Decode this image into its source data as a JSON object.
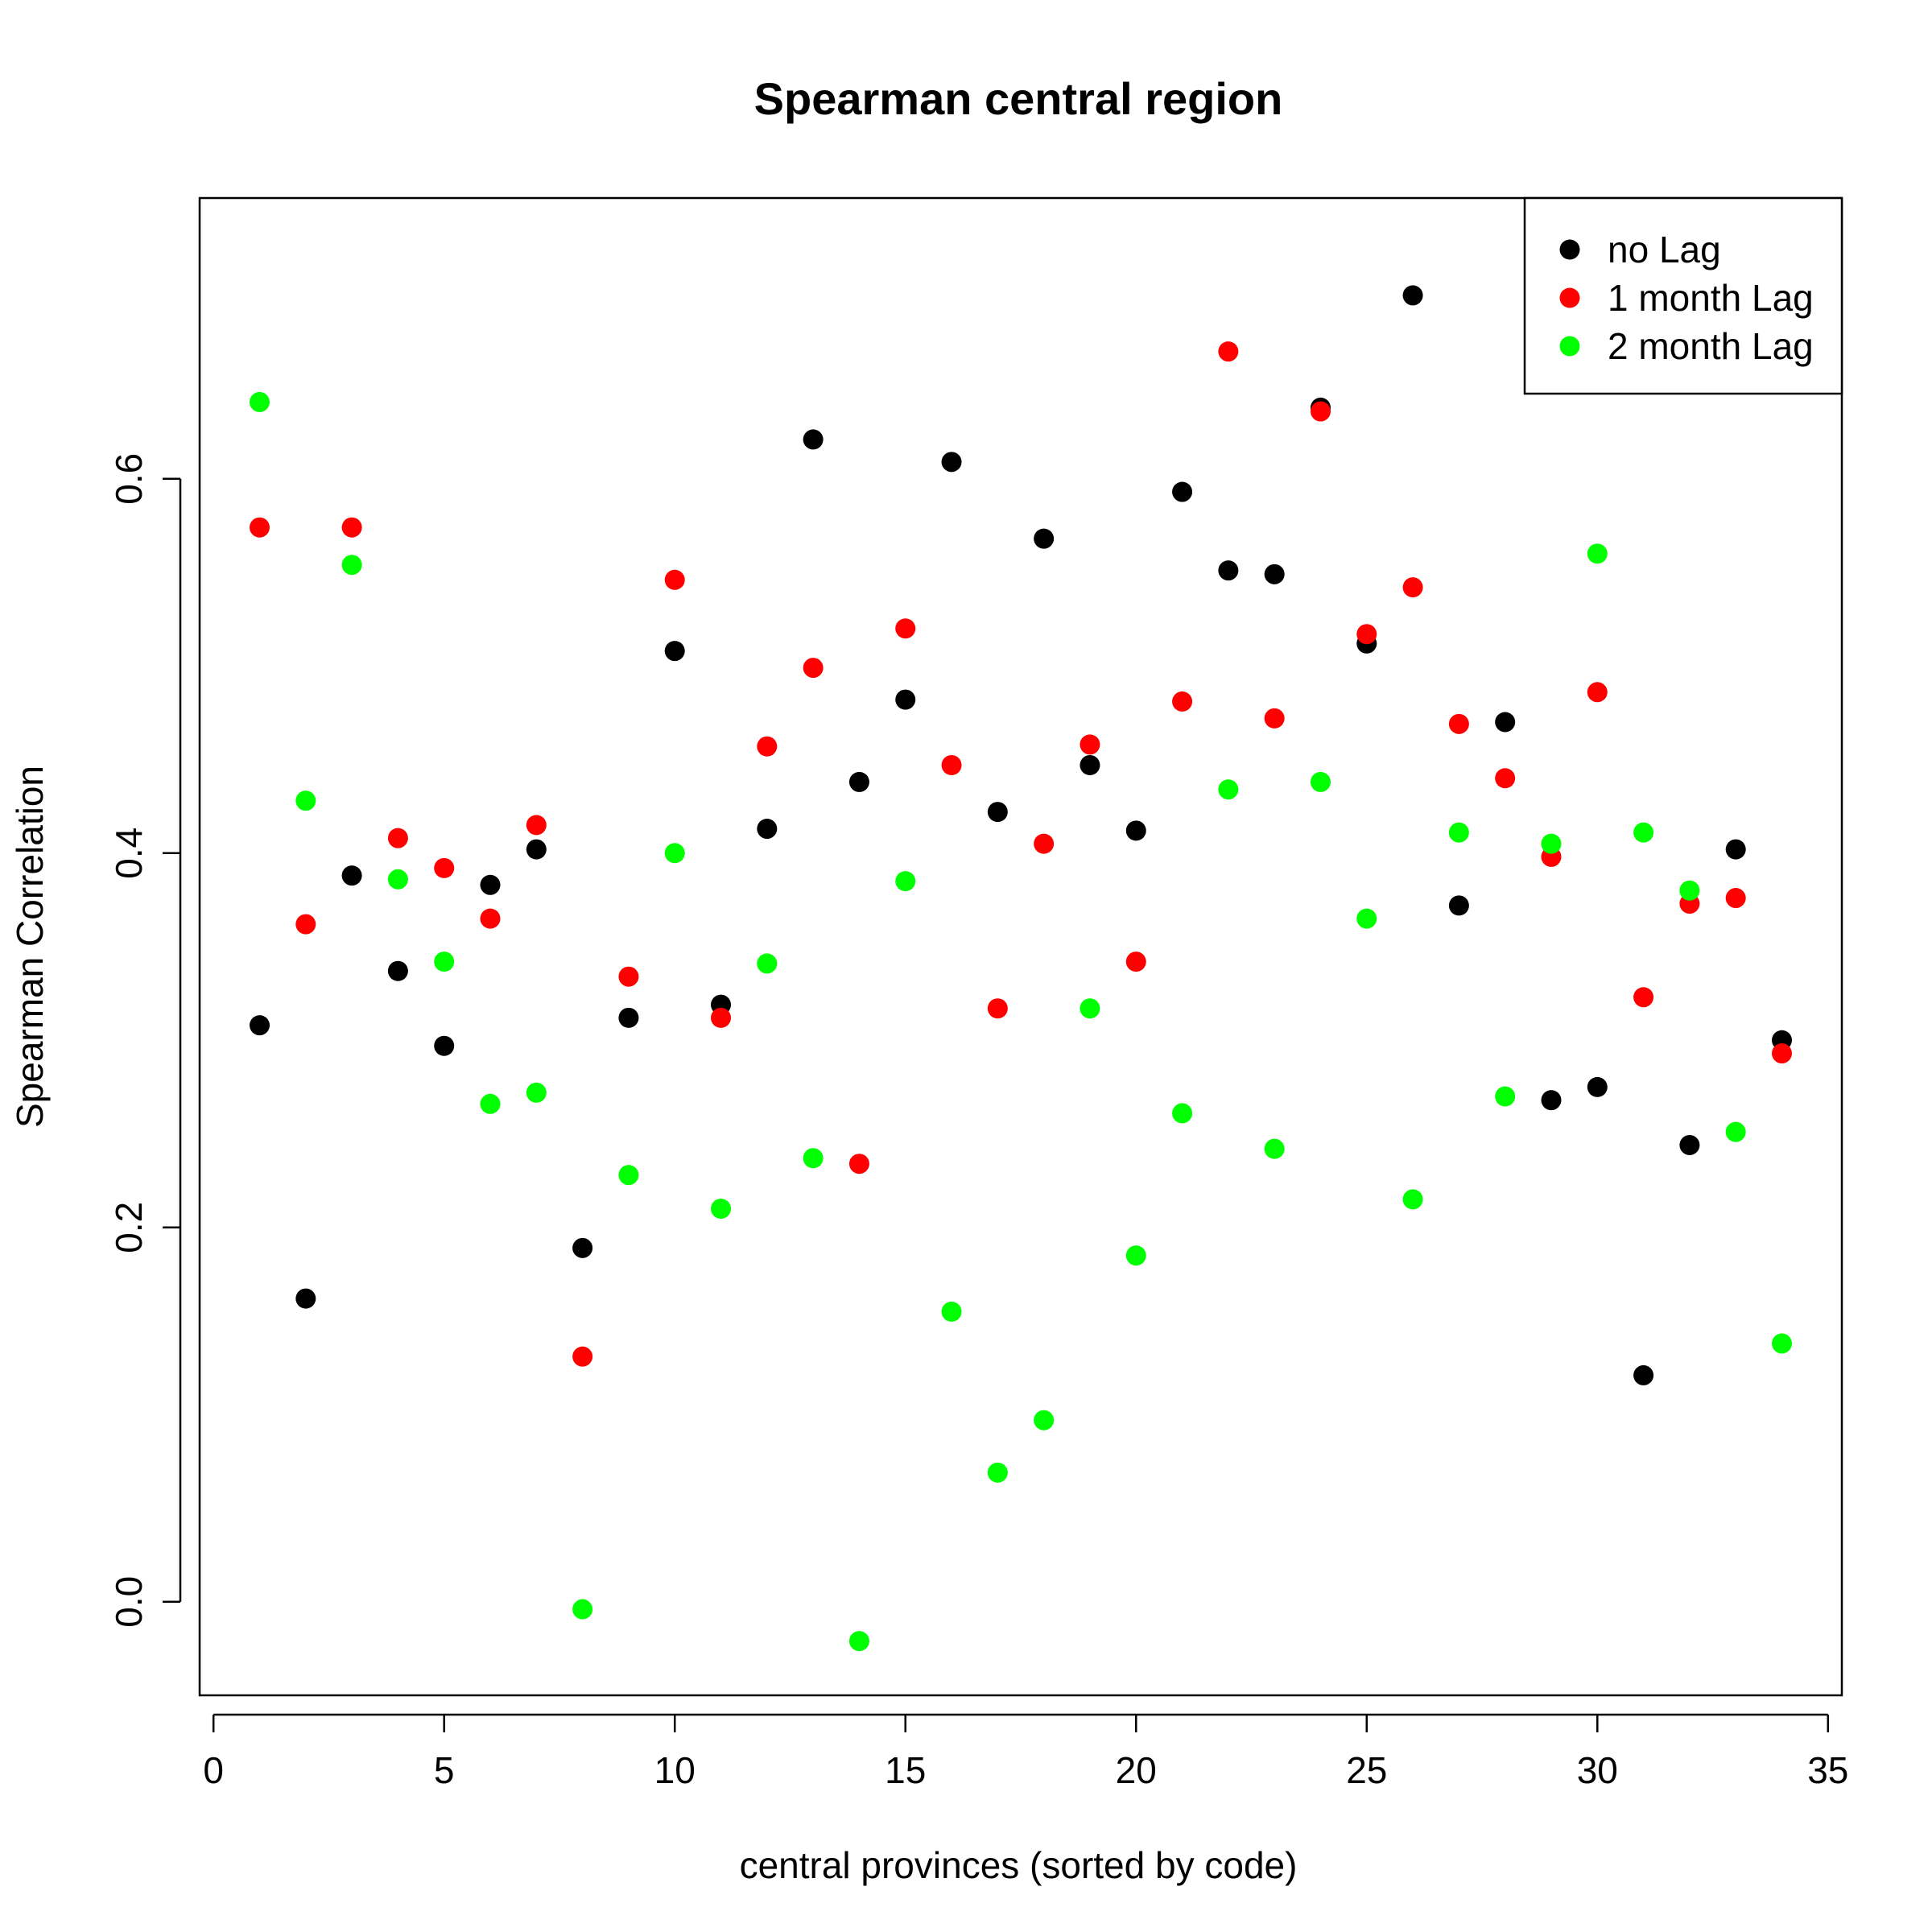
{
  "chart_data": {
    "type": "scatter",
    "title": "Spearman central region",
    "xlabel": "central provinces (sorted by code)",
    "ylabel": "Spearman Correlation",
    "xlim": [
      -0.3,
      35.3
    ],
    "ylim": [
      -0.05,
      0.75
    ],
    "x_ticks": [
      0,
      5,
      10,
      15,
      20,
      25,
      30,
      35
    ],
    "y_ticks": [
      0.0,
      0.2,
      0.4,
      0.6
    ],
    "x_tick_labels": [
      "0",
      "5",
      "10",
      "15",
      "20",
      "25",
      "30",
      "35"
    ],
    "y_tick_labels": [
      "0.0",
      "0.2",
      "0.4",
      "0.6"
    ],
    "legend_position": "top-right",
    "grid": false,
    "x": [
      1,
      2,
      3,
      4,
      5,
      6,
      7,
      8,
      9,
      10,
      11,
      12,
      13,
      14,
      15,
      16,
      17,
      18,
      19,
      20,
      21,
      22,
      23,
      24,
      25,
      26,
      27,
      28,
      29,
      30,
      31,
      32,
      33,
      34
    ],
    "series": [
      {
        "name": "no Lag",
        "color": "#000000",
        "values": [
          0.308,
          0.162,
          0.388,
          0.337,
          0.297,
          0.383,
          0.402,
          0.189,
          0.312,
          0.508,
          0.319,
          0.413,
          0.621,
          0.438,
          0.482,
          0.609,
          0.422,
          0.568,
          0.447,
          0.412,
          0.593,
          0.551,
          0.549,
          0.638,
          0.512,
          0.698,
          0.372,
          0.47,
          0.268,
          0.275,
          0.121,
          0.244,
          0.402,
          0.3
        ]
      },
      {
        "name": "1 month Lag",
        "color": "#ff0000",
        "values": [
          0.574,
          0.362,
          0.574,
          0.408,
          0.392,
          0.365,
          0.415,
          0.131,
          0.334,
          0.546,
          0.312,
          0.457,
          0.499,
          0.234,
          0.52,
          0.447,
          0.317,
          0.405,
          0.458,
          0.342,
          0.481,
          0.668,
          0.472,
          0.636,
          0.517,
          0.542,
          0.469,
          0.44,
          0.398,
          0.486,
          0.323,
          0.373,
          0.376,
          0.293
        ]
      },
      {
        "name": "2 month Lag",
        "color": "#00ff00",
        "values": [
          0.641,
          0.428,
          0.554,
          0.386,
          0.342,
          0.266,
          0.272,
          -0.004,
          0.228,
          0.4,
          0.21,
          0.341,
          0.237,
          -0.021,
          0.385,
          0.155,
          0.069,
          0.097,
          0.317,
          0.185,
          0.261,
          0.434,
          0.242,
          0.438,
          0.365,
          0.215,
          0.411,
          0.27,
          0.405,
          0.56,
          0.411,
          0.38,
          0.251,
          0.138
        ]
      }
    ]
  }
}
